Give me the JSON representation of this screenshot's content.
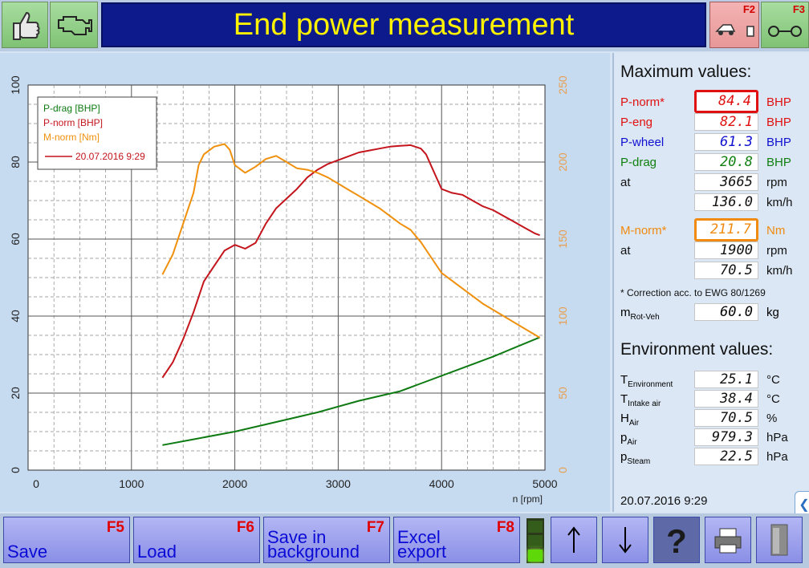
{
  "header": {
    "title": "End power measurement",
    "left_buttons": [
      {
        "icon": "thumbs-up-icon"
      },
      {
        "icon": "engine-icon"
      }
    ],
    "right_buttons": [
      {
        "key": "F2",
        "icon": "vehicle-on-dyno-icon"
      },
      {
        "key": "F3",
        "icon": "rollers-icon"
      }
    ]
  },
  "chart_data": {
    "type": "line",
    "xlabel": "n [rpm]",
    "x_ticks": [
      "0",
      "1000",
      "2000",
      "3000",
      "4000",
      "5000"
    ],
    "xlim": [
      0,
      5000
    ],
    "y_left_ticks": [
      "0",
      "20",
      "40",
      "60",
      "80",
      "100"
    ],
    "ylim_left": [
      0,
      100
    ],
    "y_right_ticks": [
      "0",
      "50",
      "100",
      "150",
      "200",
      "250"
    ],
    "ylim_right": [
      0,
      250
    ],
    "grid": true,
    "legend_position": "top-left",
    "legend": [
      {
        "label": "P-drag [BHP]",
        "color": "#0d7a12"
      },
      {
        "label": "P-norm [BHP]",
        "color": "#c4141c"
      },
      {
        "label": "M-norm [Nm]",
        "color": "#f0900c"
      },
      {
        "label": "20.07.2016 9:29",
        "color": "#c4141c",
        "line": true
      }
    ],
    "series": [
      {
        "name": "P-drag [BHP]",
        "axis": "left",
        "color": "#0d7a12",
        "x": [
          1300,
          1600,
          2000,
          2400,
          2800,
          3200,
          3600,
          3800,
          4200,
          4500,
          4950
        ],
        "y": [
          6.5,
          8,
          10,
          12.5,
          15,
          18,
          20.5,
          22.5,
          26.5,
          29.5,
          34.5
        ]
      },
      {
        "name": "P-norm [BHP]",
        "axis": "left",
        "color": "#c4141c",
        "x": [
          1300,
          1400,
          1500,
          1600,
          1700,
          1800,
          1900,
          2000,
          2100,
          2200,
          2300,
          2400,
          2500,
          2600,
          2700,
          2800,
          2900,
          3000,
          3100,
          3200,
          3300,
          3400,
          3500,
          3600,
          3700,
          3800,
          3850,
          3900,
          4000,
          4100,
          4200,
          4300,
          4400,
          4500,
          4600,
          4700,
          4800,
          4900,
          4950
        ],
        "y": [
          24,
          28,
          34,
          41,
          49,
          53,
          57,
          58.5,
          57.5,
          59,
          64,
          68,
          70.5,
          73,
          76,
          78,
          79.5,
          80.5,
          81.5,
          82.5,
          83,
          83.5,
          84,
          84.2,
          84.4,
          83.5,
          82,
          79,
          73,
          72,
          71.5,
          70,
          68.5,
          67.5,
          66,
          64.5,
          63,
          61.5,
          61
        ]
      },
      {
        "name": "M-norm [Nm]",
        "axis": "right",
        "color": "#f0900c",
        "x": [
          1300,
          1400,
          1500,
          1600,
          1650,
          1700,
          1800,
          1900,
          1950,
          2000,
          2100,
          2200,
          2300,
          2400,
          2500,
          2600,
          2700,
          2800,
          2900,
          3000,
          3100,
          3200,
          3300,
          3400,
          3500,
          3600,
          3700,
          3800,
          3900,
          4000,
          4200,
          4400,
          4600,
          4800,
          4950
        ],
        "y": [
          127,
          140,
          160,
          180,
          198,
          205,
          210,
          211.7,
          208,
          198,
          193,
          197,
          202,
          204,
          200,
          196,
          195,
          193,
          190,
          186,
          182,
          178,
          174,
          170,
          165,
          160,
          156,
          148,
          138,
          128,
          118,
          108,
          100,
          92,
          86
        ]
      }
    ]
  },
  "max_values": {
    "title": "Maximum values:",
    "rows": [
      {
        "label": "P-norm*",
        "value": "84.4",
        "unit": "BHP",
        "color": "#e01010",
        "highlight": "#e01010"
      },
      {
        "label": "P-eng",
        "value": "82.1",
        "unit": "BHP",
        "color": "#e01010"
      },
      {
        "label": "P-wheel",
        "value": "61.3",
        "unit": "BHP",
        "color": "#1010d0"
      },
      {
        "label": "P-drag",
        "value": "20.8",
        "unit": "BHP",
        "color": "#108010"
      },
      {
        "label": "at",
        "value": "3665",
        "unit": "rpm",
        "color": "#111111"
      },
      {
        "label": "",
        "value": "136.0",
        "unit": "km/h",
        "color": "#111111"
      },
      {
        "label": "M-norm*",
        "value": "211.7",
        "unit": "Nm",
        "color": "#f08a10",
        "highlight": "#f08a10"
      },
      {
        "label": "at",
        "value": "1900",
        "unit": "rpm",
        "color": "#111111"
      },
      {
        "label": "",
        "value": "70.5",
        "unit": "km/h",
        "color": "#111111"
      }
    ],
    "note": "* Correction acc. to EWG 80/1269",
    "mass": {
      "label": "m",
      "sub": "Rot-Veh",
      "value": "60.0",
      "unit": "kg"
    }
  },
  "environment": {
    "title": "Environment values:",
    "rows": [
      {
        "label": "T",
        "sub": "Environment",
        "value": "25.1",
        "unit": "°C"
      },
      {
        "label": "T",
        "sub": "Intake air",
        "value": "38.4",
        "unit": "°C"
      },
      {
        "label": "H",
        "sub": "Air",
        "value": "70.5",
        "unit": "%"
      },
      {
        "label": "p",
        "sub": "Air",
        "value": "979.3",
        "unit": "hPa"
      },
      {
        "label": "p",
        "sub": "Steam",
        "value": "22.5",
        "unit": "hPa"
      }
    ]
  },
  "timestamp": "20.07.2016  9:29",
  "footer": {
    "buttons": [
      {
        "key": "F5",
        "line1": "",
        "line2": "Save"
      },
      {
        "key": "F6",
        "line1": "",
        "line2": "Load"
      },
      {
        "key": "F7",
        "line1": "Save in",
        "line2": "background"
      },
      {
        "key": "F8",
        "line1": "Excel",
        "line2": "export"
      }
    ],
    "icon_buttons": [
      "arrow-up-icon",
      "arrow-down-icon",
      "help-icon",
      "printer-icon",
      "exit-icon"
    ]
  }
}
